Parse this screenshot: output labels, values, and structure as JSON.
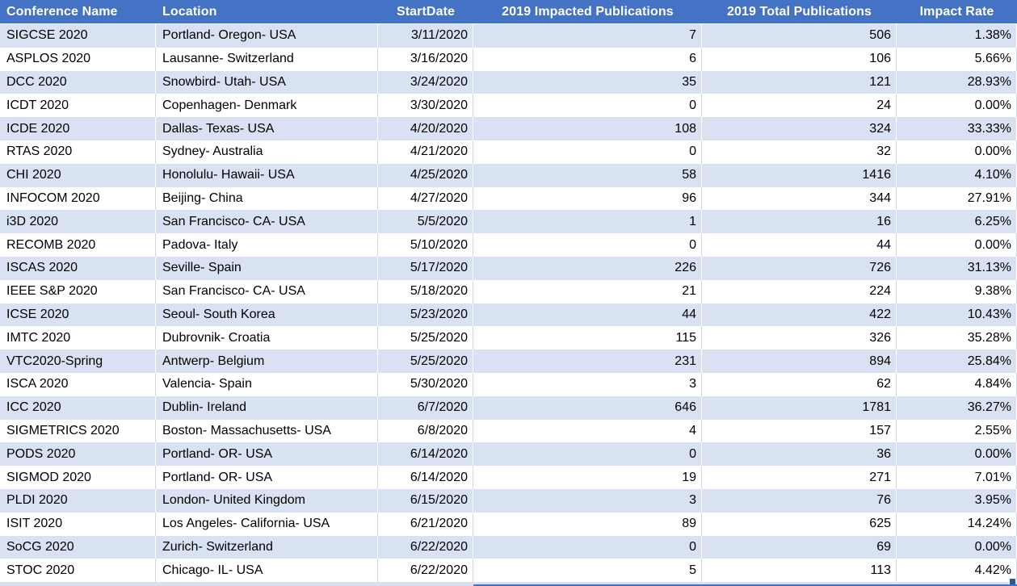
{
  "table": {
    "columns": [
      "Conference Name",
      "Location",
      "StartDate",
      "2019 Impacted Publications",
      "2019 Total Publications",
      "Impact Rate"
    ],
    "rows": [
      {
        "conference": "SIGCSE 2020",
        "location": "Portland- Oregon- USA",
        "start_date": "3/11/2020",
        "impacted": "7",
        "total": "506",
        "impact_rate": "1.38%"
      },
      {
        "conference": "ASPLOS 2020",
        "location": "Lausanne- Switzerland",
        "start_date": "3/16/2020",
        "impacted": "6",
        "total": "106",
        "impact_rate": "5.66%"
      },
      {
        "conference": "DCC 2020",
        "location": "Snowbird- Utah- USA",
        "start_date": "3/24/2020",
        "impacted": "35",
        "total": "121",
        "impact_rate": "28.93%"
      },
      {
        "conference": "ICDT 2020",
        "location": "Copenhagen- Denmark",
        "start_date": "3/30/2020",
        "impacted": "0",
        "total": "24",
        "impact_rate": "0.00%"
      },
      {
        "conference": "ICDE 2020",
        "location": "Dallas- Texas- USA",
        "start_date": "4/20/2020",
        "impacted": "108",
        "total": "324",
        "impact_rate": "33.33%"
      },
      {
        "conference": "RTAS 2020",
        "location": "Sydney- Australia",
        "start_date": "4/21/2020",
        "impacted": "0",
        "total": "32",
        "impact_rate": "0.00%"
      },
      {
        "conference": "CHI 2020",
        "location": "Honolulu- Hawaii- USA",
        "start_date": "4/25/2020",
        "impacted": "58",
        "total": "1416",
        "impact_rate": "4.10%"
      },
      {
        "conference": "INFOCOM 2020",
        "location": "Beijing- China",
        "start_date": "4/27/2020",
        "impacted": "96",
        "total": "344",
        "impact_rate": "27.91%"
      },
      {
        "conference": "i3D 2020",
        "location": "San Francisco- CA- USA",
        "start_date": "5/5/2020",
        "impacted": "1",
        "total": "16",
        "impact_rate": "6.25%"
      },
      {
        "conference": "RECOMB 2020",
        "location": "Padova- Italy",
        "start_date": "5/10/2020",
        "impacted": "0",
        "total": "44",
        "impact_rate": "0.00%"
      },
      {
        "conference": "ISCAS 2020",
        "location": "Seville- Spain",
        "start_date": "5/17/2020",
        "impacted": "226",
        "total": "726",
        "impact_rate": "31.13%"
      },
      {
        "conference": "IEEE S&P 2020",
        "location": "San Francisco- CA- USA",
        "start_date": "5/18/2020",
        "impacted": "21",
        "total": "224",
        "impact_rate": "9.38%"
      },
      {
        "conference": "ICSE 2020",
        "location": "Seoul- South Korea",
        "start_date": "5/23/2020",
        "impacted": "44",
        "total": "422",
        "impact_rate": "10.43%"
      },
      {
        "conference": "IMTC 2020",
        "location": "Dubrovnik- Croatia",
        "start_date": "5/25/2020",
        "impacted": "115",
        "total": "326",
        "impact_rate": "35.28%"
      },
      {
        "conference": "VTC2020-Spring",
        "location": "Antwerp- Belgium",
        "start_date": "5/25/2020",
        "impacted": "231",
        "total": "894",
        "impact_rate": "25.84%"
      },
      {
        "conference": "ISCA 2020",
        "location": "Valencia- Spain",
        "start_date": "5/30/2020",
        "impacted": "3",
        "total": "62",
        "impact_rate": "4.84%"
      },
      {
        "conference": "ICC 2020",
        "location": "Dublin- Ireland",
        "start_date": "6/7/2020",
        "impacted": "646",
        "total": "1781",
        "impact_rate": "36.27%"
      },
      {
        "conference": "SIGMETRICS 2020",
        "location": "Boston- Massachusetts- USA",
        "start_date": "6/8/2020",
        "impacted": "4",
        "total": "157",
        "impact_rate": "2.55%"
      },
      {
        "conference": "PODS 2020",
        "location": "Portland- OR- USA",
        "start_date": "6/14/2020",
        "impacted": "0",
        "total": "36",
        "impact_rate": "0.00%"
      },
      {
        "conference": "SIGMOD 2020",
        "location": "Portland- OR- USA",
        "start_date": "6/14/2020",
        "impacted": "19",
        "total": "271",
        "impact_rate": "7.01%"
      },
      {
        "conference": "PLDI 2020",
        "location": "London- United Kingdom",
        "start_date": "6/15/2020",
        "impacted": "3",
        "total": "76",
        "impact_rate": "3.95%"
      },
      {
        "conference": "ISIT 2020",
        "location": "Los Angeles- California- USA",
        "start_date": "6/21/2020",
        "impacted": "89",
        "total": "625",
        "impact_rate": "14.24%"
      },
      {
        "conference": "SoCG 2020",
        "location": "Zurich- Switzerland",
        "start_date": "6/22/2020",
        "impacted": "0",
        "total": "69",
        "impact_rate": "0.00%"
      },
      {
        "conference": "STOC 2020",
        "location": "Chicago- IL- USA",
        "start_date": "6/22/2020",
        "impacted": "5",
        "total": "113",
        "impact_rate": "4.42%"
      }
    ]
  },
  "colors": {
    "header_bg": "#4472C4",
    "band_bg": "#D9E2F3",
    "selection_border": "#4472C4",
    "fill_handle": "#2F5597"
  }
}
